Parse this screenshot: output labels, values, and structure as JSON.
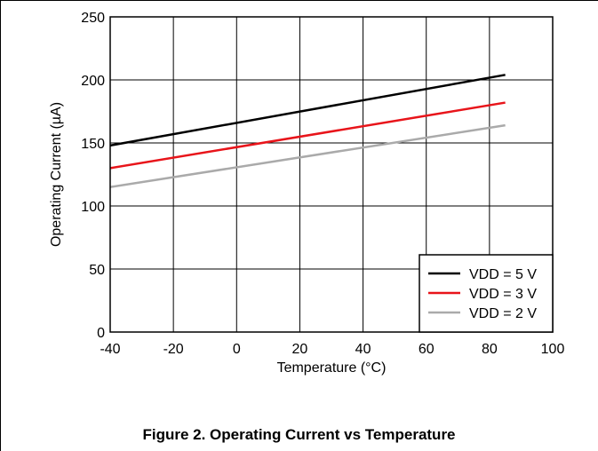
{
  "caption": "Figure 2. Operating Current vs Temperature",
  "chart_data": {
    "type": "line",
    "title": "",
    "xlabel": "Temperature (°C)",
    "ylabel": "Operating Current (µA)",
    "xlim": [
      -40,
      100
    ],
    "ylim": [
      0,
      250
    ],
    "xticks": [
      -40,
      -20,
      0,
      20,
      40,
      60,
      80,
      100
    ],
    "yticks": [
      0,
      50,
      100,
      150,
      200,
      250
    ],
    "grid": true,
    "legend_position": "bottom-right",
    "series": [
      {
        "name": "VDD = 5 V",
        "color": "#000000",
        "x": [
          -40,
          85
        ],
        "values": [
          148,
          204
        ]
      },
      {
        "name": "VDD = 3 V",
        "color": "#e8141a",
        "x": [
          -40,
          85
        ],
        "values": [
          130,
          182
        ]
      },
      {
        "name": "VDD = 2 V",
        "color": "#aaaaaa",
        "x": [
          -40,
          85
        ],
        "values": [
          115,
          164
        ]
      }
    ]
  }
}
